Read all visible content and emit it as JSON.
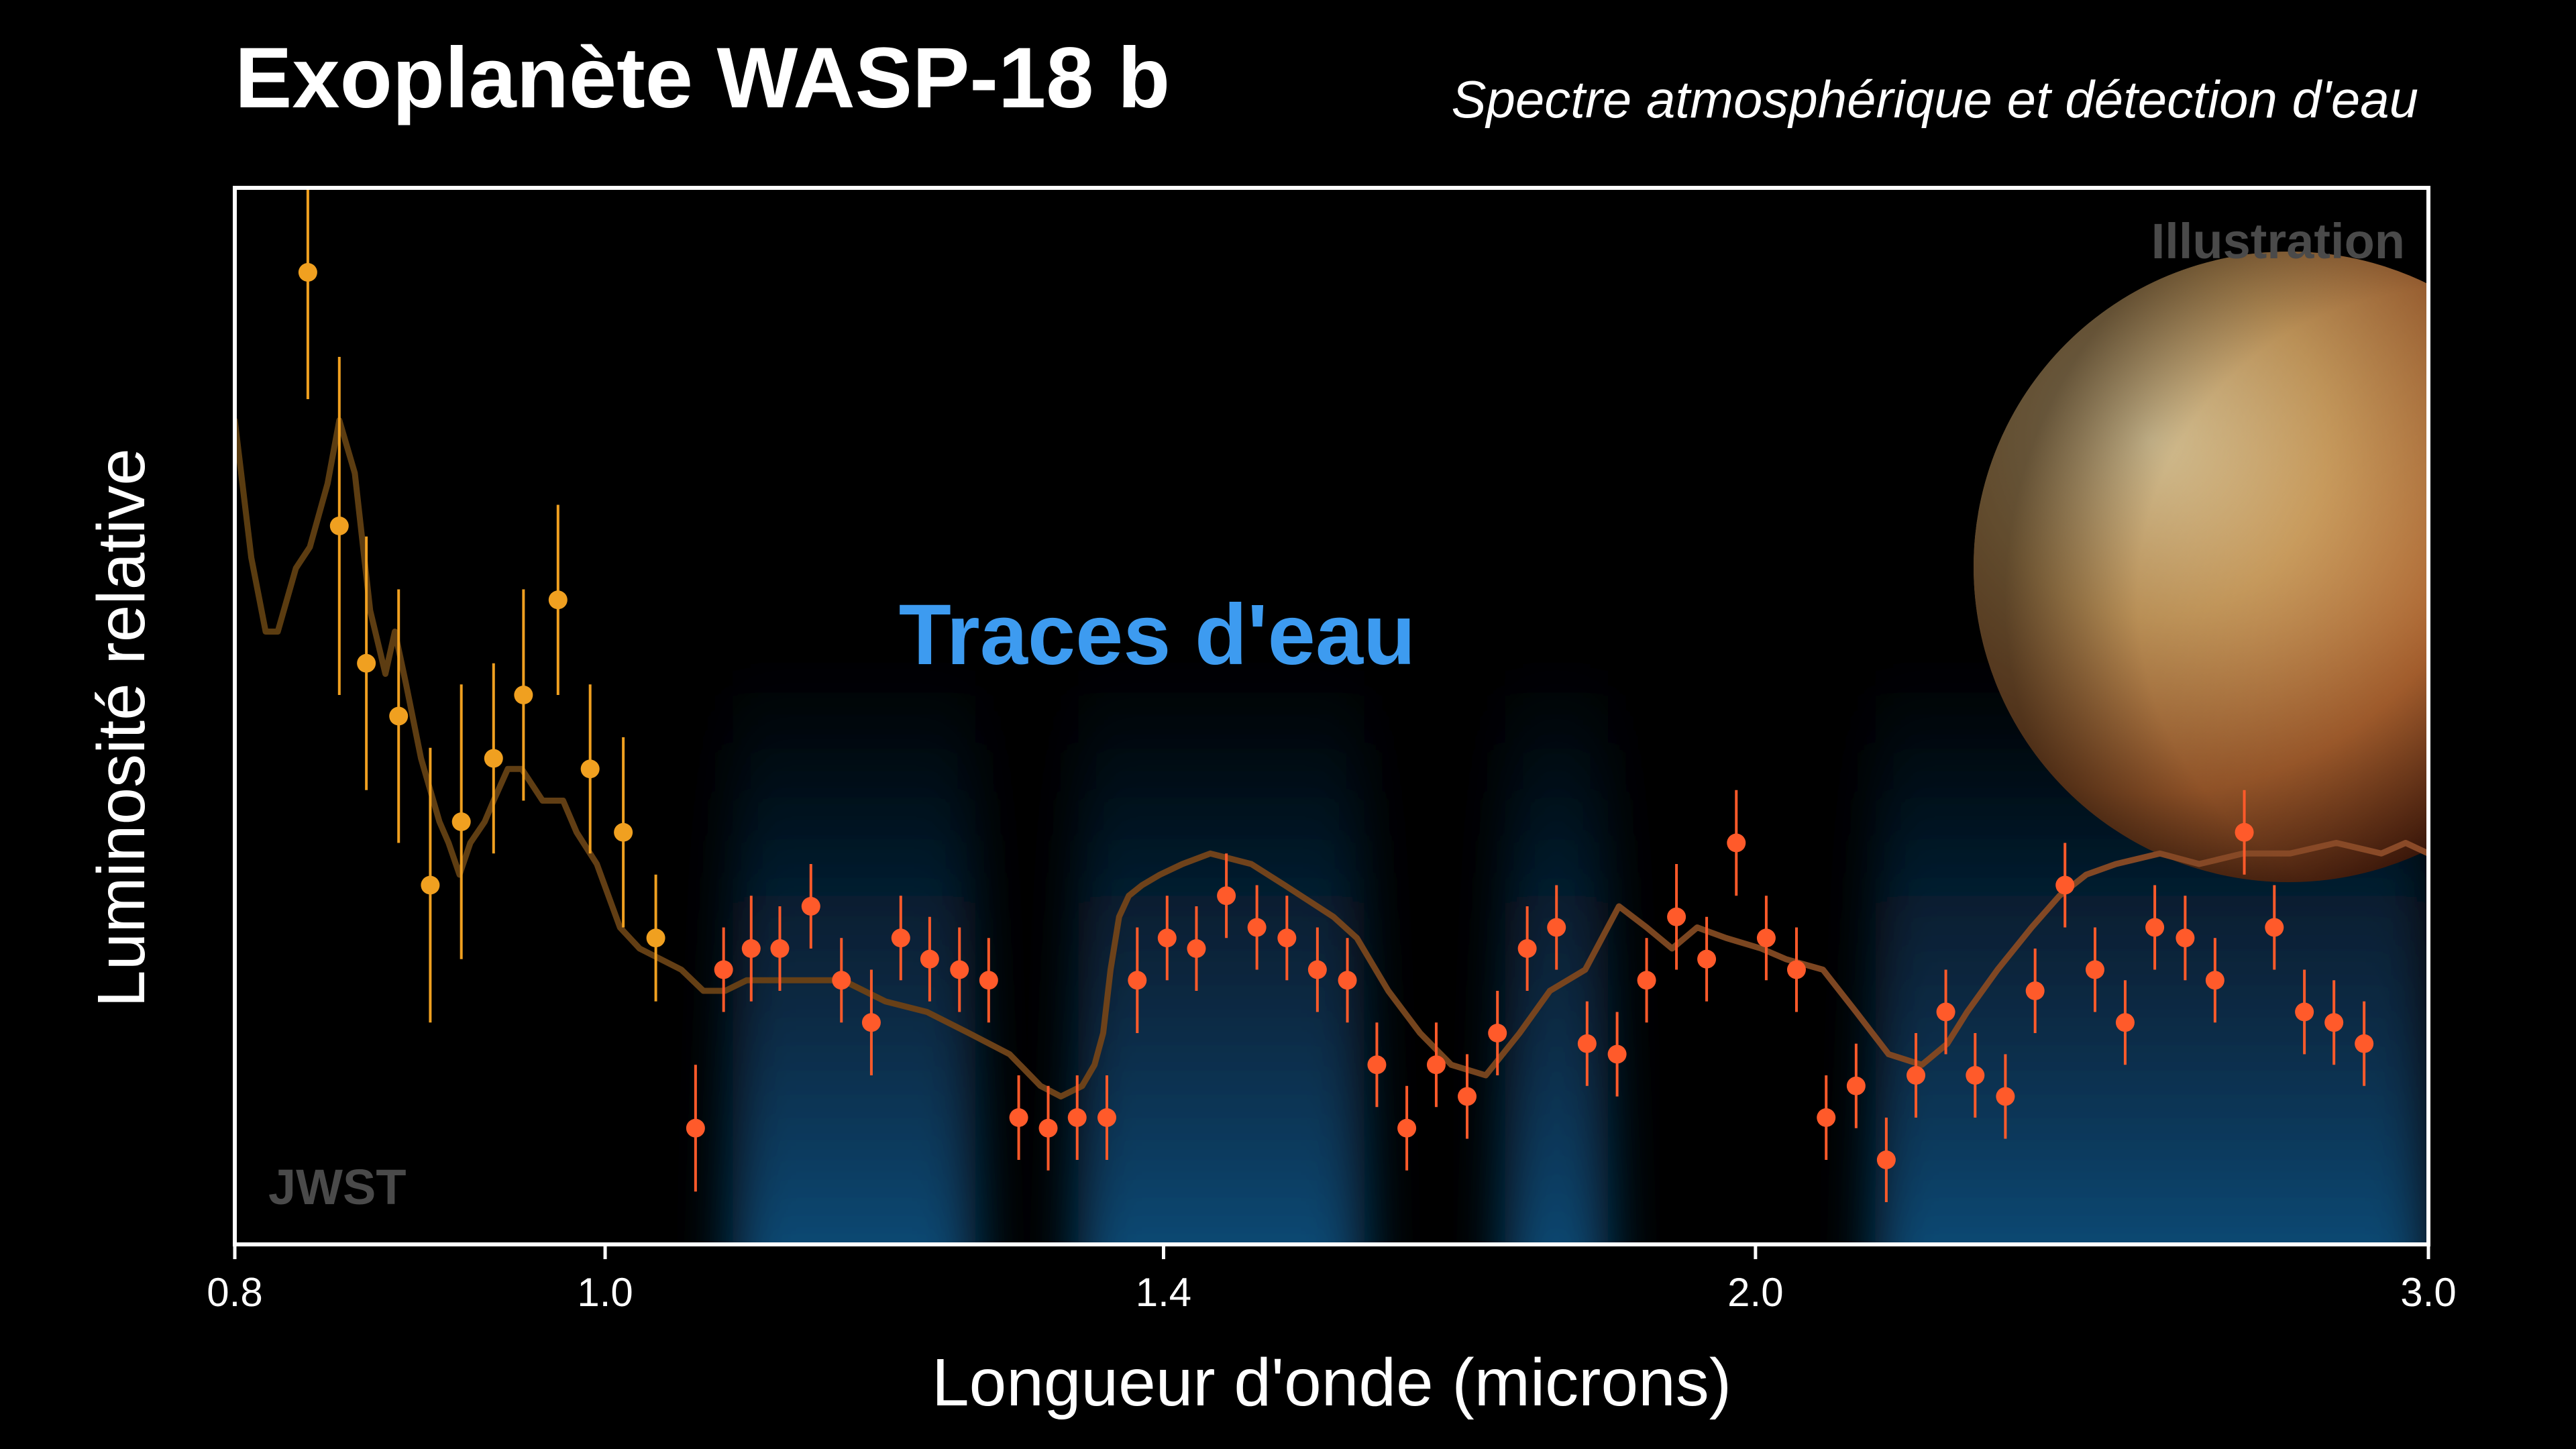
{
  "header": {
    "title": "Exoplanète WASP-18 b",
    "subtitle": "Spectre atmosphérique et détection d'eau"
  },
  "chart_data": {
    "type": "scatter",
    "xlabel": "Longueur d'onde (microns)",
    "ylabel": "Luminosité relative",
    "xscale": "log",
    "xlim": [
      0.8,
      3.0
    ],
    "ylim": [
      0,
      100
    ],
    "xticks": [
      {
        "value": 0.8,
        "label": "0.8"
      },
      {
        "value": 1.0,
        "label": "1.0"
      },
      {
        "value": 1.4,
        "label": "1.4"
      },
      {
        "value": 2.0,
        "label": "2.0"
      },
      {
        "value": 3.0,
        "label": "3.0"
      }
    ],
    "annotations": {
      "water": "Traces d'eau",
      "illustration": "Illustration",
      "instrument": "JWST"
    },
    "colors": {
      "points_short": "#f0a020",
      "points_long": "#ff5a2a",
      "model_short": "#5a3c10",
      "model_long": "#8a4a28",
      "water_bands": "#1f6fb0",
      "water_label": "#3d9bf0"
    },
    "water_bands": [
      [
        1.08,
        1.25
      ],
      [
        1.33,
        1.58
      ],
      [
        1.72,
        1.83
      ],
      [
        2.15,
        3.0
      ]
    ],
    "model": {
      "x": [
        0.8,
        0.808,
        0.815,
        0.821,
        0.83,
        0.837,
        0.846,
        0.852,
        0.86,
        0.868,
        0.876,
        0.881,
        0.887,
        0.895,
        0.905,
        0.91,
        0.916,
        0.922,
        0.93,
        0.935,
        0.943,
        0.951,
        0.963,
        0.975,
        0.983,
        0.995,
        1.009,
        1.021,
        1.034,
        1.047,
        1.061,
        1.075,
        1.089,
        1.103,
        1.117,
        1.132,
        1.154,
        1.184,
        1.214,
        1.245,
        1.276,
        1.3,
        1.316,
        1.333,
        1.343,
        1.35,
        1.356,
        1.363,
        1.371,
        1.382,
        1.397,
        1.416,
        1.44,
        1.476,
        1.506,
        1.551,
        1.573,
        1.603,
        1.634,
        1.665,
        1.7,
        1.735,
        1.767,
        1.805,
        1.842,
        1.873,
        1.902,
        1.931,
        1.965,
        2.007,
        2.037,
        2.083,
        2.125,
        2.167,
        2.211,
        2.245,
        2.272,
        2.314,
        2.362,
        2.402,
        2.441,
        2.485,
        2.552,
        2.613,
        2.683,
        2.76,
        2.838,
        2.916,
        2.959,
        3.0
      ],
      "y": [
        78,
        65,
        58,
        58,
        64,
        66,
        72,
        78,
        73,
        60,
        54,
        58,
        53,
        46,
        40,
        38,
        35,
        38,
        40,
        42,
        45,
        45,
        42,
        42,
        39,
        36,
        30,
        28,
        27,
        26,
        24,
        24,
        25,
        25,
        25,
        25,
        25,
        23,
        22,
        20,
        18,
        15,
        14,
        15,
        17,
        20,
        26,
        31,
        33,
        34,
        35,
        36,
        37,
        36,
        34,
        31,
        29,
        24,
        20,
        17,
        16,
        20,
        24,
        26,
        32,
        30,
        28,
        30,
        29,
        28,
        27,
        26,
        22,
        18,
        17,
        19,
        22,
        26,
        30,
        33,
        35,
        36,
        37,
        36,
        37,
        37,
        38,
        37,
        38,
        37
      ]
    },
    "series": [
      {
        "x": [
          0.836,
          0.852,
          0.866,
          0.883,
          0.9,
          0.917,
          0.935,
          0.952,
          0.972,
          0.991,
          1.011,
          1.031
        ],
        "y": [
          92,
          68,
          55,
          50,
          34,
          40,
          46,
          52,
          61,
          45,
          39,
          29
        ],
        "err": [
          12,
          16,
          12,
          12,
          13,
          13,
          9,
          10,
          9,
          8,
          9,
          6
        ]
      },
      {
        "x": [
          1.056,
          1.074,
          1.092,
          1.111,
          1.132,
          1.153,
          1.174,
          1.195,
          1.216,
          1.238,
          1.26,
          1.283,
          1.306,
          1.329,
          1.353,
          1.378,
          1.403,
          1.428,
          1.454,
          1.481,
          1.508,
          1.536,
          1.564,
          1.592,
          1.621,
          1.65,
          1.681,
          1.712,
          1.743,
          1.774,
          1.807,
          1.84,
          1.873,
          1.907,
          1.942,
          1.977,
          2.013,
          2.05,
          2.087,
          2.125,
          2.164,
          2.203,
          2.243,
          2.283,
          2.325,
          2.367,
          2.41,
          2.454,
          2.499,
          2.544,
          2.591,
          2.638,
          2.685,
          2.734,
          2.784,
          2.834,
          2.886
        ],
        "y": [
          11,
          26,
          28,
          28,
          32,
          25,
          21,
          29,
          27,
          26,
          25,
          12,
          11,
          12,
          12,
          25,
          29,
          28,
          33,
          30,
          29,
          26,
          25,
          17,
          11,
          17,
          14,
          20,
          28,
          30,
          19,
          18,
          25,
          31,
          27,
          38,
          29,
          26,
          12,
          15,
          8,
          16,
          22,
          16,
          14,
          24,
          34,
          26,
          21,
          30,
          29,
          25,
          39,
          30,
          22,
          21,
          19
        ],
        "err": [
          6,
          4,
          5,
          4,
          4,
          4,
          5,
          4,
          4,
          4,
          4,
          4,
          4,
          4,
          4,
          5,
          4,
          4,
          4,
          4,
          4,
          4,
          4,
          4,
          4,
          4,
          4,
          4,
          4,
          4,
          4,
          4,
          4,
          5,
          4,
          5,
          4,
          4,
          4,
          4,
          4,
          4,
          4,
          4,
          4,
          4,
          4,
          4,
          4,
          4,
          4,
          4,
          4,
          4,
          4,
          4,
          4
        ]
      }
    ]
  }
}
